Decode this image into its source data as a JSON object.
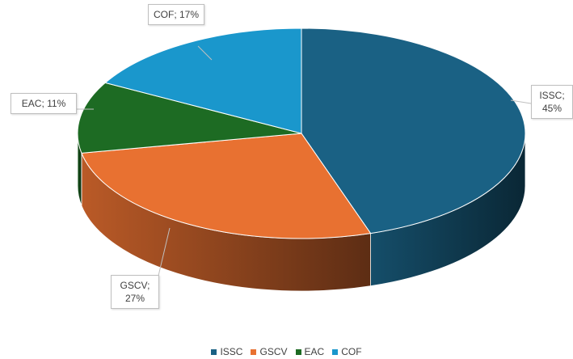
{
  "chart_data": {
    "type": "pie",
    "categories": [
      "ISSC",
      "GSCV",
      "EAC",
      "COF"
    ],
    "values": [
      45,
      27,
      11,
      17
    ],
    "value_labels": [
      "ISSC; 45%",
      "GSCV; 27%",
      "EAC; 11%",
      "COF; 17%"
    ],
    "colors": [
      "#1a6184",
      "#e87131",
      "#1d6b23",
      "#1a97cc"
    ],
    "legend": "bottom"
  }
}
